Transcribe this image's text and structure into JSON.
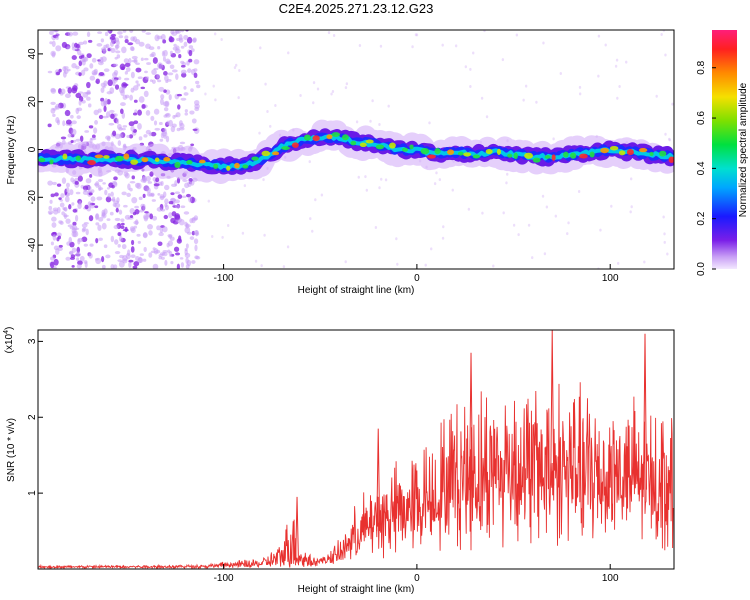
{
  "title": "C2E4.2025.271.23.12.G23",
  "chart_data": [
    {
      "type": "heatmap",
      "name": "spectrogram",
      "xlabel": "Height of straight line (km)",
      "ylabel": "Frequency (Hz)",
      "xlim": [
        -196,
        133
      ],
      "ylim": [
        -50,
        50
      ],
      "x_ticks": [
        -100,
        0,
        100
      ],
      "x_tick_labels": [
        "-100",
        "0",
        "100"
      ],
      "y_ticks": [
        40,
        20,
        0,
        -20,
        -40
      ],
      "y_tick_labels": [
        "40",
        "20",
        "0",
        "-20",
        "-40"
      ],
      "ridge_frequency": {
        "x": [
          -196,
          -150,
          -115,
          -100,
          -90,
          -80,
          -70,
          -60,
          -50,
          -40,
          -30,
          -20,
          -10,
          0,
          10,
          20,
          30,
          40,
          50,
          60,
          70,
          80,
          90,
          100,
          110,
          120,
          133
        ],
        "y": [
          -4,
          -4,
          -6,
          -7,
          -7,
          -4,
          1,
          4,
          5,
          5,
          3,
          2,
          0,
          0,
          -2,
          -1,
          -2,
          -1,
          -2,
          -3,
          -3,
          -2,
          -1,
          0,
          -1,
          -2,
          -3
        ]
      },
      "noise_region_x": [
        -190,
        -113
      ],
      "colorbar": {
        "label": "Normalized spectral amplitude",
        "range": [
          0,
          0.95
        ],
        "ticks": [
          0.0,
          0.2,
          0.4,
          0.6,
          0.8
        ],
        "tick_labels": [
          "0.0",
          "0.2",
          "0.4",
          "0.6",
          "0.8"
        ]
      }
    },
    {
      "type": "line",
      "name": "snr",
      "xlabel": "Height of straight line (km)",
      "ylabel": "SNR (10 * v/v)",
      "y_multiplier": "(x10^4)",
      "xlim": [
        -196,
        133
      ],
      "ylim": [
        0,
        3.15
      ],
      "x_ticks": [
        -100,
        0,
        100
      ],
      "x_tick_labels": [
        "-100",
        "0",
        "100"
      ],
      "y_ticks": [
        1,
        2,
        3
      ],
      "y_tick_labels": [
        "1",
        "2",
        "3"
      ],
      "color": "#e8312f",
      "envelope": {
        "x": [
          -196,
          -110,
          -100,
          -80,
          -70,
          -65,
          -60,
          -50,
          -40,
          -35,
          -30,
          -20,
          -10,
          0,
          10,
          20,
          30,
          40,
          50,
          60,
          70,
          80,
          90,
          100,
          110,
          120,
          133
        ],
        "y": [
          0.05,
          0.06,
          0.1,
          0.15,
          0.35,
          0.9,
          0.3,
          0.15,
          0.4,
          0.7,
          1.0,
          1.3,
          1.5,
          1.7,
          2.0,
          2.4,
          2.5,
          2.6,
          2.7,
          2.6,
          2.7,
          2.6,
          2.5,
          2.5,
          2.4,
          2.3,
          2.2
        ]
      },
      "baseline": {
        "x": [
          -196,
          -60,
          -40,
          -20,
          0,
          20,
          40,
          60,
          80,
          100,
          133
        ],
        "y": [
          0.03,
          0.05,
          0.2,
          0.5,
          0.8,
          1.0,
          1.1,
          1.1,
          1.1,
          1.1,
          1.0
        ]
      },
      "peaks": [
        {
          "x": -62,
          "y": 0.95
        },
        {
          "x": -20,
          "y": 1.85
        },
        {
          "x": 28,
          "y": 2.85
        },
        {
          "x": 70,
          "y": 3.15
        },
        {
          "x": 118,
          "y": 3.1
        }
      ]
    }
  ]
}
